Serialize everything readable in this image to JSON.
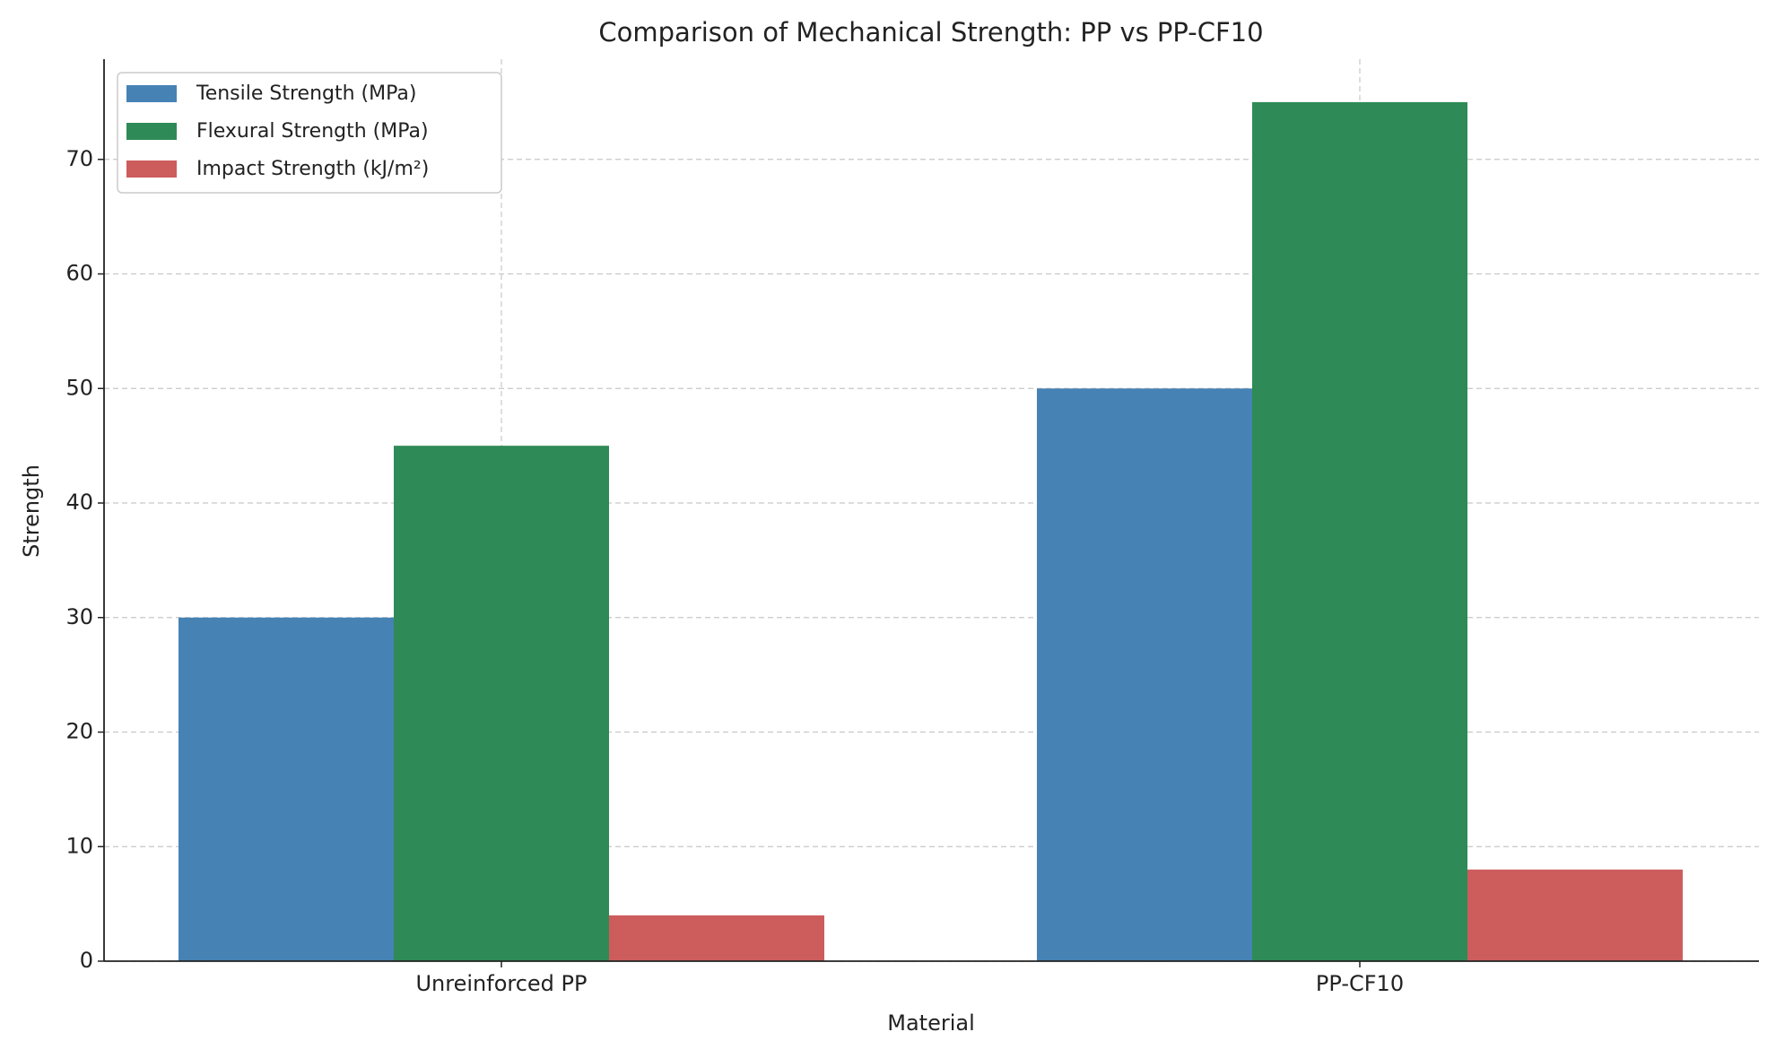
{
  "chart_data": {
    "type": "bar",
    "title": "Comparison of Mechanical Strength: PP vs PP-CF10",
    "x_label": "Material",
    "y_label": "Strength",
    "categories": [
      "Unreinforced PP",
      "PP-CF10"
    ],
    "series": [
      {
        "name": "Tensile Strength (MPa)",
        "color": "#4682b4",
        "values": [
          30,
          50
        ]
      },
      {
        "name": "Flexural Strength (MPa)",
        "color": "#2e8b57",
        "values": [
          45,
          75
        ]
      },
      {
        "name": "Impact Strength (kJ/m²)",
        "color": "#cd5c5c",
        "values": [
          4,
          8
        ]
      }
    ],
    "ylim": [
      0,
      78.75
    ],
    "yticks": [
      0,
      10,
      20,
      30,
      40,
      50,
      60,
      70
    ],
    "grid": true,
    "legend": "upper-left"
  }
}
